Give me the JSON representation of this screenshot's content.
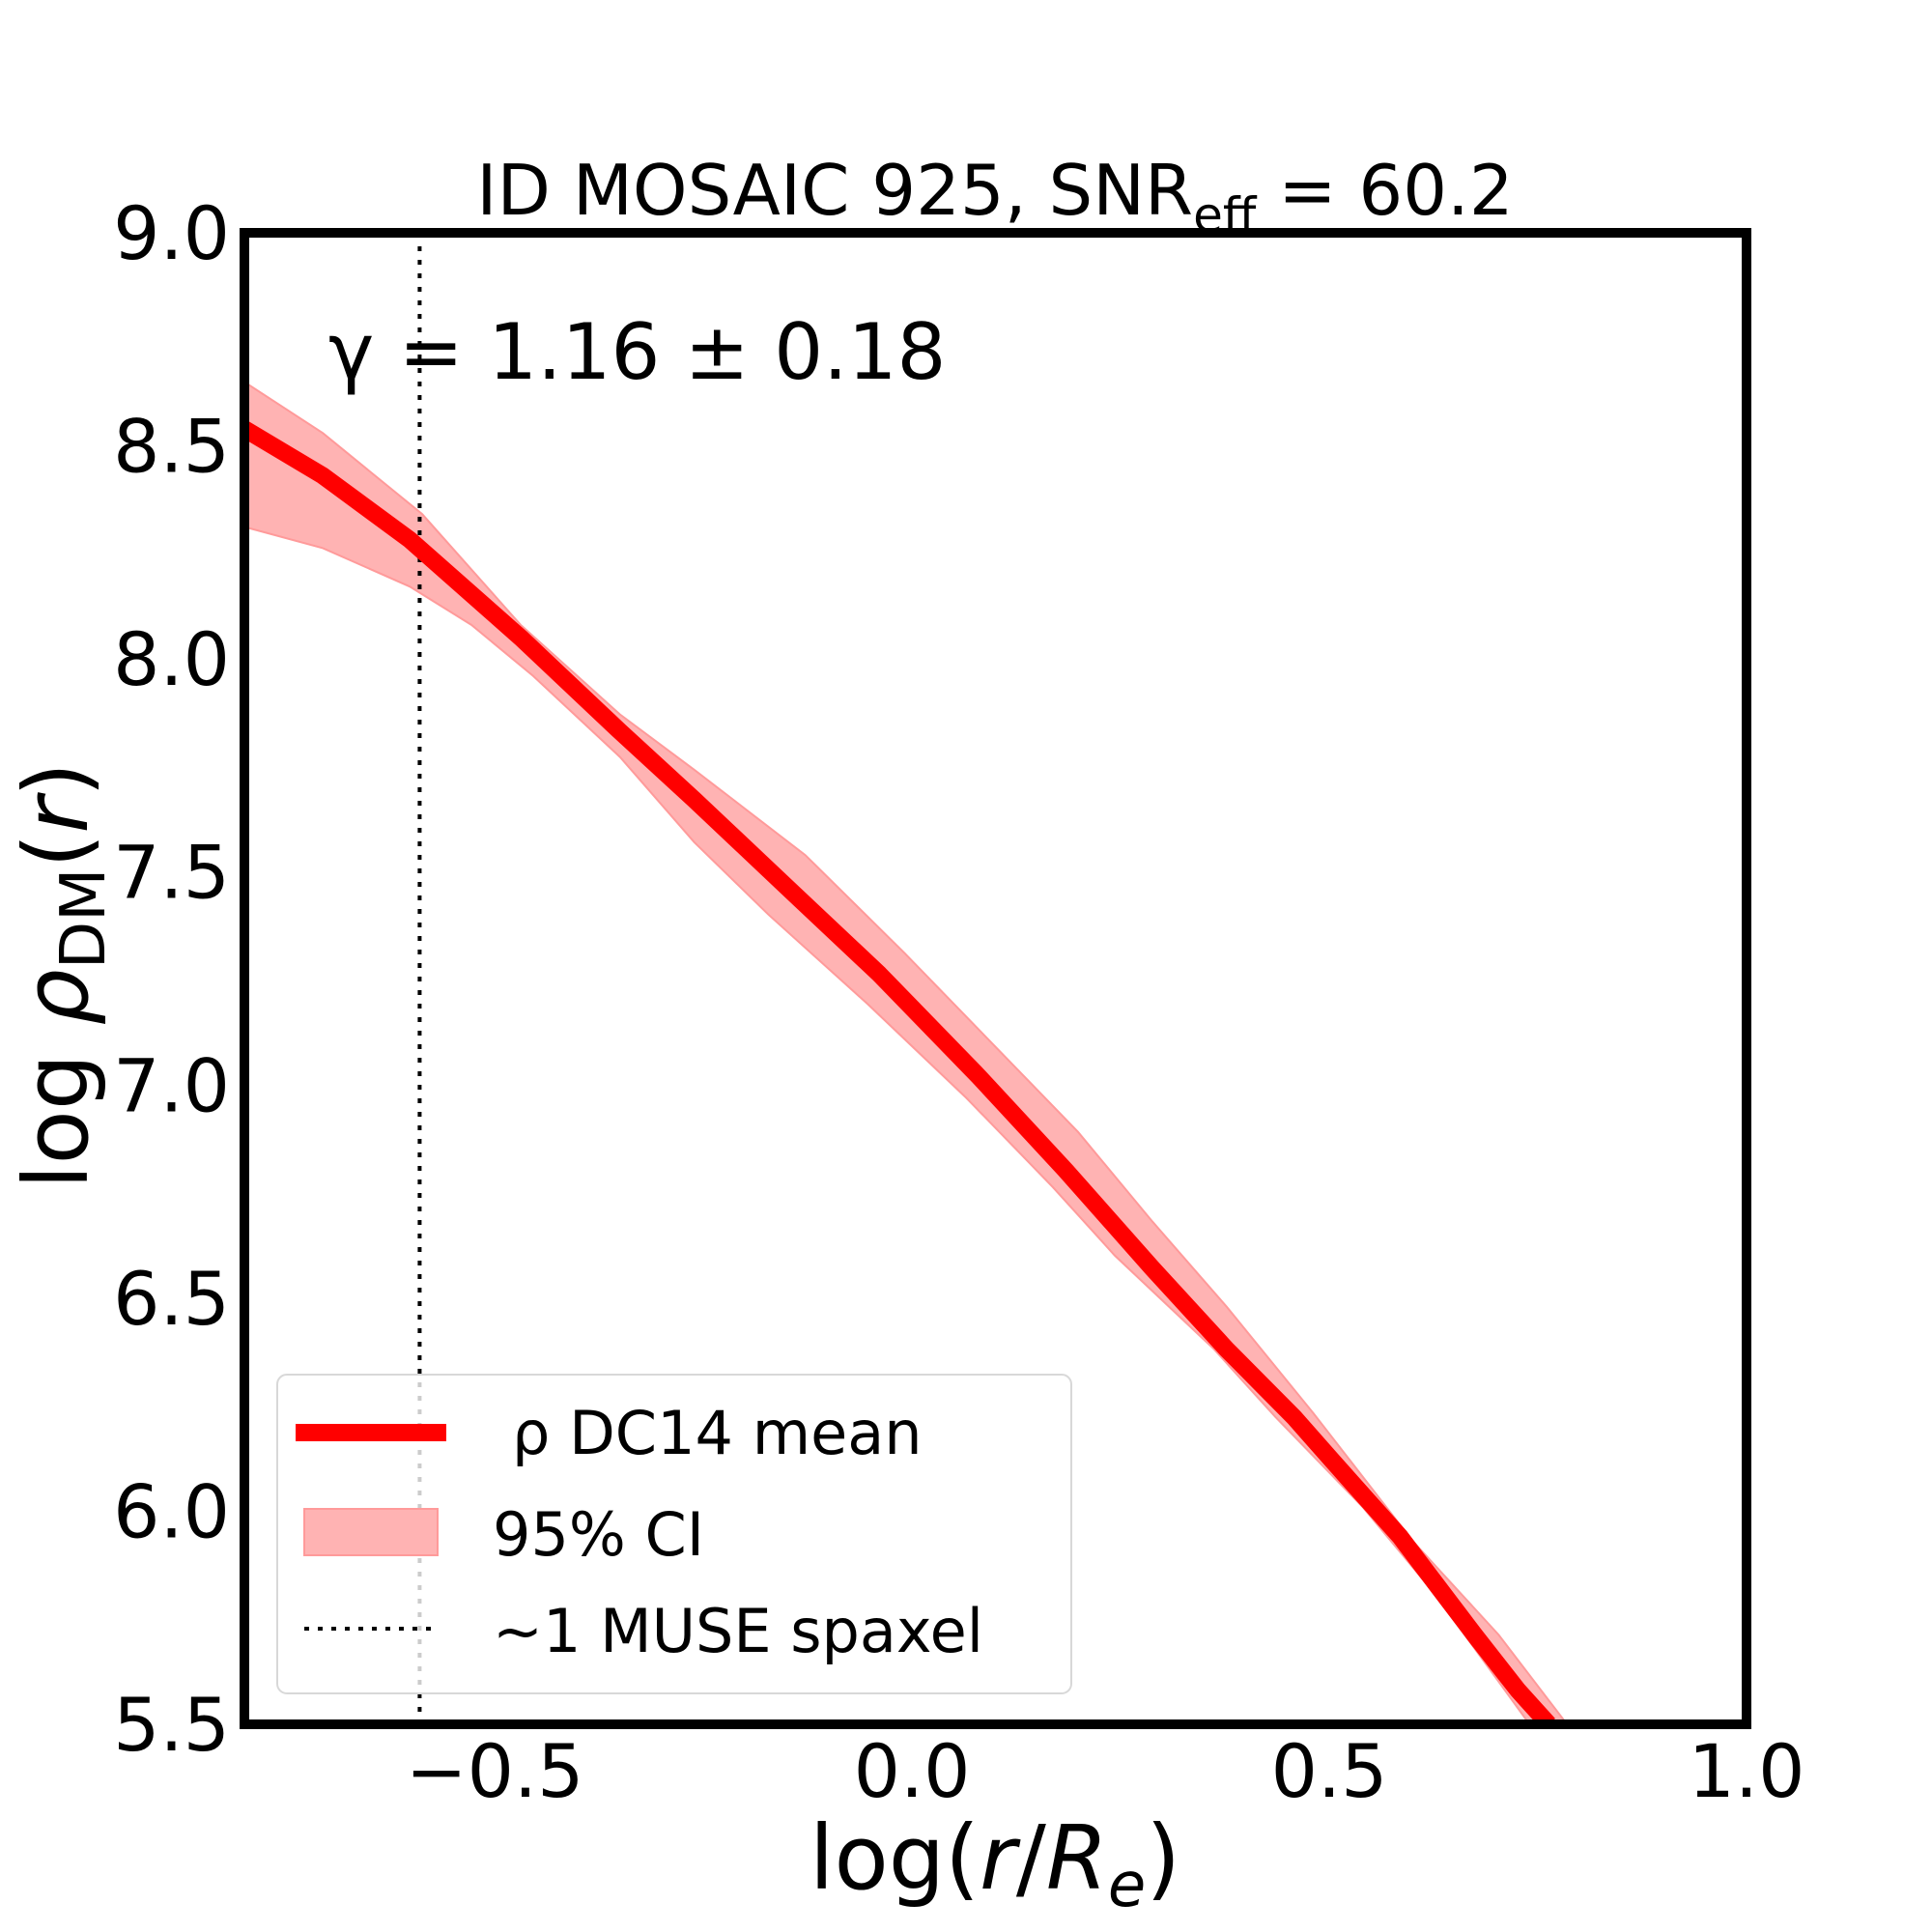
{
  "chart_data": {
    "type": "line",
    "title": "ID MOSAIC 925, SNR",
    "title_sub": "eff",
    "title_tail": " = 60.2",
    "xlabel": "log(r/R_e)",
    "ylabel": "log ρ_DM(r)",
    "xlim": [
      -0.8,
      1.0
    ],
    "ylim": [
      5.5,
      9.0
    ],
    "xticks": [
      -0.5,
      0.0,
      0.5,
      1.0
    ],
    "xtick_labels": [
      "−0.5",
      "0.0",
      "0.5",
      "1.0"
    ],
    "yticks": [
      5.5,
      6.0,
      6.5,
      7.0,
      7.5,
      8.0,
      8.5,
      9.0
    ],
    "ytick_labels": [
      "5.5",
      "6.0",
      "6.5",
      "7.0",
      "7.5",
      "8.0",
      "8.5",
      "9.0"
    ],
    "grid": false,
    "annotation": "γ = 1.16 ± 0.18",
    "vline_x": -0.59,
    "legend_placement": "lower-left",
    "colors": {
      "mean": "#ff0000",
      "ci": "#ffb3b3",
      "vline": "#000000"
    },
    "series": [
      {
        "name": "ρ DC14 mean",
        "x": [
          -0.8,
          -0.706,
          -0.602,
          -0.469,
          -0.35,
          -0.261,
          -0.142,
          -0.039,
          0.08,
          0.184,
          0.288,
          0.377,
          0.458,
          0.503,
          0.585,
          0.674,
          0.726,
          0.763
        ],
        "y": [
          8.54,
          8.43,
          8.28,
          8.05,
          7.83,
          7.67,
          7.45,
          7.26,
          7.02,
          6.8,
          6.57,
          6.38,
          6.22,
          6.12,
          5.94,
          5.71,
          5.58,
          5.5
        ]
      },
      {
        "name": "95% CI",
        "upper_x": [
          -0.8,
          -0.706,
          -0.587,
          -0.469,
          -0.35,
          -0.261,
          -0.128,
          -0.009,
          0.095,
          0.199,
          0.288,
          0.377,
          0.481,
          0.6,
          0.703,
          0.785
        ],
        "upper_y": [
          8.65,
          8.53,
          8.34,
          8.08,
          7.87,
          7.74,
          7.54,
          7.31,
          7.1,
          6.89,
          6.68,
          6.48,
          6.23,
          5.93,
          5.71,
          5.5
        ],
        "lower_x": [
          -0.8,
          -0.706,
          -0.602,
          -0.528,
          -0.454,
          -0.35,
          -0.261,
          -0.172,
          -0.053,
          0.065,
          0.169,
          0.243,
          0.362,
          0.436,
          0.54,
          0.629,
          0.74
        ],
        "lower_y": [
          8.31,
          8.26,
          8.17,
          8.08,
          7.96,
          7.77,
          7.57,
          7.4,
          7.19,
          6.97,
          6.76,
          6.6,
          6.38,
          6.22,
          6.01,
          5.8,
          5.5
        ]
      },
      {
        "name": "~1 MUSE spaxel"
      }
    ]
  }
}
